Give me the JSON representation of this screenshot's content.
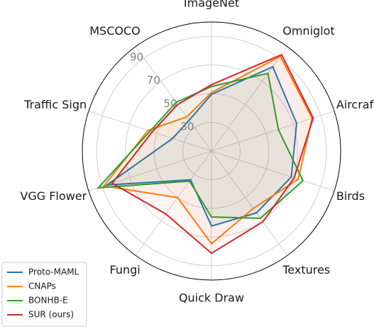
{
  "chart_data": {
    "type": "radar",
    "axes": [
      "ImageNet",
      "Omniglot",
      "Aircraft",
      "Birds",
      "Textures",
      "Quick Draw",
      "Fungi",
      "VGG Flower",
      "Traffic Sign",
      "MSCOCO"
    ],
    "rlim": [
      10,
      100
    ],
    "ticks": [
      30,
      50,
      70,
      90
    ],
    "tick_labels": [
      "30",
      "50",
      "70",
      "90"
    ],
    "grid": true,
    "legend_position": "bottom-left",
    "series": [
      {
        "name": "Proto-MAML",
        "color": "#1f77b4",
        "values": [
          49.5,
          82.7,
          72.4,
          68.5,
          63.3,
          62.3,
          34.8,
          86.6,
          38.5,
          36.5
        ]
      },
      {
        "name": "CNAPs",
        "color": "#ff7f0e",
        "values": [
          50.8,
          91.7,
          83.7,
          73.6,
          59.5,
          74.7,
          50.2,
          88.9,
          56.5,
          39.4
        ]
      },
      {
        "name": "BONHB-E",
        "color": "#2ca02c",
        "values": [
          55.0,
          77.0,
          59.0,
          77.0,
          68.0,
          56.0,
          36.0,
          93.0,
          55.0,
          52.0
        ]
      },
      {
        "name": "SUR (ours)",
        "color": "#d62728",
        "values": [
          56.3,
          93.1,
          84.5,
          70.6,
          71.0,
          81.3,
          64.2,
          82.8,
          53.4,
          50.1
        ]
      }
    ]
  }
}
